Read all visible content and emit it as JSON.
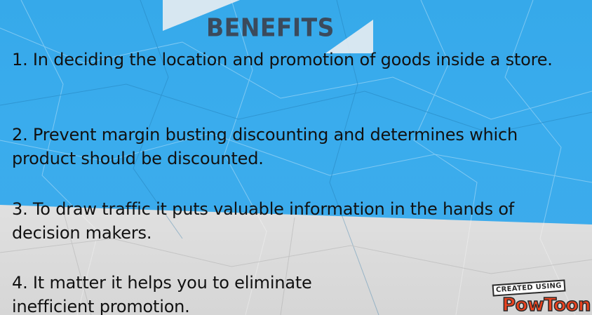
{
  "slide": {
    "title": "BENEFITS",
    "benefits": [
      "1. In deciding the location and promotion of goods inside a store.",
      "2. Prevent margin busting discounting and determines which product should be discounted.",
      "3. To draw traffic it puts valuable information in the hands of decision makers.",
      "4. It matter it helps you to eliminate inefficient promotion."
    ]
  },
  "badge": {
    "caption": "CREATED USING",
    "logo": "PowToon"
  },
  "colors": {
    "background_top": "#3aaced",
    "background_bottom": "#dcdcdc",
    "title": "#3b4a5c",
    "text": "#111111",
    "logo": "#e8421f"
  }
}
